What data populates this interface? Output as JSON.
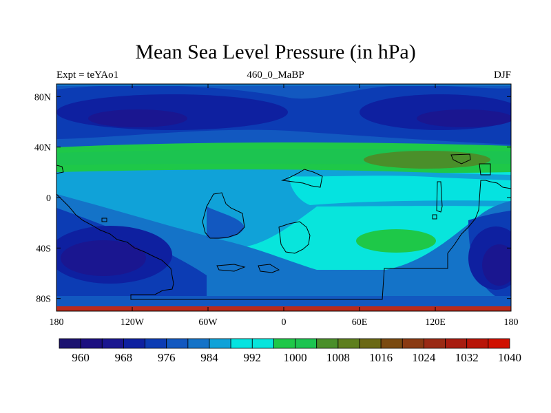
{
  "title": "Mean Sea Level Pressure (in hPa)",
  "left_label": "Expt = teYAo1",
  "center_label": "460_0_MaBP",
  "right_label": "DJF",
  "map": {
    "lon_range": [
      -180,
      180
    ],
    "lat_range": [
      -90,
      90
    ],
    "x_ticks": [
      {
        "lon": -180,
        "label": "180"
      },
      {
        "lon": -120,
        "label": "120W"
      },
      {
        "lon": -60,
        "label": "60W"
      },
      {
        "lon": 0,
        "label": "0"
      },
      {
        "lon": 60,
        "label": "60E"
      },
      {
        "lon": 120,
        "label": "120E"
      },
      {
        "lon": 180,
        "label": "180"
      }
    ],
    "y_ticks": [
      {
        "lat": 80,
        "label": "80N"
      },
      {
        "lat": 40,
        "label": "40N"
      },
      {
        "lat": 0,
        "label": "0"
      },
      {
        "lat": -40,
        "label": "40S"
      },
      {
        "lat": -80,
        "label": "80S"
      }
    ]
  },
  "colorbar": {
    "colors": [
      "#1b1270",
      "#1c0f80",
      "#1a1690",
      "#0e20a0",
      "#0c3cb4",
      "#1258c0",
      "#1473c8",
      "#10a2d8",
      "#05e3e0",
      "#08e5dc",
      "#1ec848",
      "#1cc450",
      "#4a8f2a",
      "#5e7f1e",
      "#6b6814",
      "#7a4a10",
      "#8a3a12",
      "#9a2a14",
      "#a81c10",
      "#b81408",
      "#d01000"
    ],
    "labels": [
      "960",
      "968",
      "976",
      "984",
      "992",
      "1000",
      "1008",
      "1016",
      "1024",
      "1032",
      "1040"
    ]
  }
}
